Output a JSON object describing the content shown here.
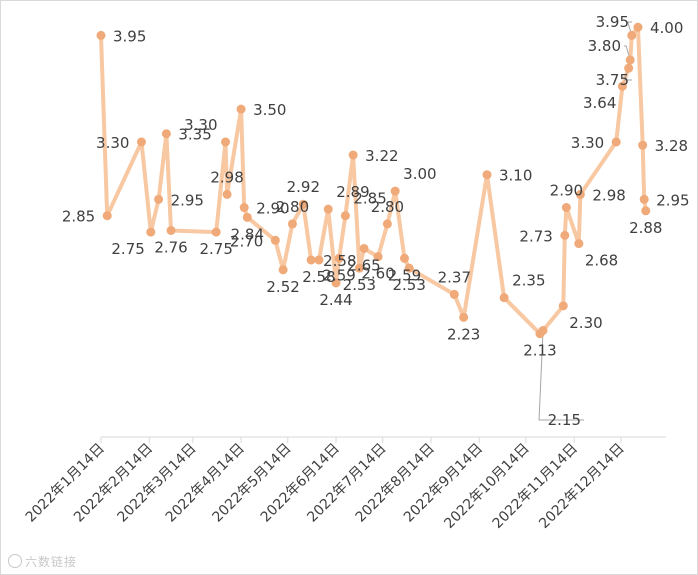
{
  "chart_data": {
    "type": "line",
    "title": "",
    "xlabel": "",
    "ylabel": "",
    "x_tick_labels": [
      "2022年1月14日",
      "2022年2月14日",
      "2022年3月14日",
      "2022年4月14日",
      "2022年5月14日",
      "2022年6月14日",
      "2022年7月14日",
      "2022年8月14日",
      "2022年9月14日",
      "2022年10月14日",
      "2022年11月14日",
      "2022年12月14日"
    ],
    "x_tick_dates": [
      "2022-01-14",
      "2022-02-14",
      "2022-03-14",
      "2022-04-14",
      "2022-05-14",
      "2022-06-14",
      "2022-07-14",
      "2022-08-14",
      "2022-09-14",
      "2022-10-14",
      "2022-11-14",
      "2022-12-14"
    ],
    "x_range": [
      "2022-01-14",
      "2023-01-12"
    ],
    "y_range": [
      1.5,
      4.05
    ],
    "grid": false,
    "legend": "none",
    "series": [
      {
        "color": "#f7c8a2",
        "marker_color": "#f0a978",
        "points": [
          {
            "x": "2022-01-14",
            "y": 3.95,
            "label": "3.95",
            "lp": "r"
          },
          {
            "x": "2022-01-18",
            "y": 2.85,
            "label": "2.85",
            "lp": "l"
          },
          {
            "x": "2022-02-09",
            "y": 3.3,
            "label": "3.30",
            "lp": "l"
          },
          {
            "x": "2022-02-15",
            "y": 2.75,
            "label": "2.75",
            "lp": "bl"
          },
          {
            "x": "2022-02-20",
            "y": 2.95,
            "label": "2.95",
            "lp": "r"
          },
          {
            "x": "2022-02-25",
            "y": 3.35,
            "label": "3.35",
            "lp": "r"
          },
          {
            "x": "2022-02-28",
            "y": 2.76,
            "label": "2.76",
            "lp": "b"
          },
          {
            "x": "2022-03-29",
            "y": 2.75,
            "label": "2.75",
            "lp": "b"
          },
          {
            "x": "2022-04-04",
            "y": 3.3,
            "label": "3.30",
            "lp": "tl"
          },
          {
            "x": "2022-04-05",
            "y": 2.98,
            "label": "2.98",
            "lp": "t"
          },
          {
            "x": "2022-04-14",
            "y": 3.5,
            "label": "3.50",
            "lp": "r"
          },
          {
            "x": "2022-04-16",
            "y": 2.9,
            "label": "2.90",
            "lp": "r"
          },
          {
            "x": "2022-04-18",
            "y": 2.84,
            "label": "2.84",
            "lp": "b"
          },
          {
            "x": "2022-05-06",
            "y": 2.7,
            "label": "2.70",
            "lp": "l"
          },
          {
            "x": "2022-05-11",
            "y": 2.52,
            "label": "2.52",
            "lp": "b"
          },
          {
            "x": "2022-05-17",
            "y": 2.8,
            "label": "2.80",
            "lp": "t"
          },
          {
            "x": "2022-05-24",
            "y": 2.92,
            "label": "2.92",
            "lp": "t"
          },
          {
            "x": "2022-05-29",
            "y": 2.58,
            "label": "2.58",
            "lp": "r"
          },
          {
            "x": "2022-06-03",
            "y": 2.58,
            "label": "2.58",
            "lp": "b"
          },
          {
            "x": "2022-06-09",
            "y": 2.89,
            "label": "2.89",
            "lp": "tr"
          },
          {
            "x": "2022-06-14",
            "y": 2.44,
            "label": "2.44",
            "lp": "b"
          },
          {
            "x": "2022-06-16",
            "y": 2.59,
            "label": "2.59",
            "lp": "b"
          },
          {
            "x": "2022-06-20",
            "y": 2.85,
            "label": "2.85",
            "lp": "tr"
          },
          {
            "x": "2022-06-25",
            "y": 3.22,
            "label": "3.22",
            "lp": "r"
          },
          {
            "x": "2022-06-29",
            "y": 2.53,
            "label": "2.53",
            "lp": "b"
          },
          {
            "x": "2022-07-02",
            "y": 2.65,
            "label": "2.65",
            "lp": "b"
          },
          {
            "x": "2022-07-11",
            "y": 2.6,
            "label": "2.60",
            "lp": "b"
          },
          {
            "x": "2022-07-17",
            "y": 2.8,
            "label": "2.80",
            "lp": "t"
          },
          {
            "x": "2022-07-22",
            "y": 3.0,
            "label": "3.00",
            "lp": "tr"
          },
          {
            "x": "2022-07-28",
            "y": 2.59,
            "label": "2.59",
            "lp": "b"
          },
          {
            "x": "2022-07-31",
            "y": 2.53,
            "label": "2.53",
            "lp": "b"
          },
          {
            "x": "2022-08-29",
            "y": 2.37,
            "label": "2.37",
            "lp": "t"
          },
          {
            "x": "2022-09-04",
            "y": 2.23,
            "label": "2.23",
            "lp": "b"
          },
          {
            "x": "2022-09-19",
            "y": 3.1,
            "label": "3.10",
            "lp": "r"
          },
          {
            "x": "2022-09-30",
            "y": 2.35,
            "label": "2.35",
            "lp": "tr"
          },
          {
            "x": "2022-10-23",
            "y": 2.13,
            "label": "2.13",
            "lp": "b"
          },
          {
            "x": "2022-10-25",
            "y": 2.15,
            "label": "2.15",
            "lp": "leader"
          },
          {
            "x": "2022-11-07",
            "y": 2.3,
            "label": "2.30",
            "lp": "br"
          },
          {
            "x": "2022-11-08",
            "y": 2.73,
            "label": "2.73",
            "lp": "l"
          },
          {
            "x": "2022-11-09",
            "y": 2.9,
            "label": "2.90",
            "lp": "t"
          },
          {
            "x": "2022-11-17",
            "y": 2.68,
            "label": "2.68",
            "lp": "br"
          },
          {
            "x": "2022-11-18",
            "y": 2.98,
            "label": "2.98",
            "lp": "r"
          },
          {
            "x": "2022-12-11",
            "y": 3.3,
            "label": "3.30",
            "lp": "l"
          },
          {
            "x": "2022-12-15",
            "y": 3.64,
            "label": "3.64",
            "lp": "bl"
          },
          {
            "x": "2022-12-19",
            "y": 3.75,
            "label": "3.75",
            "lp": "leader"
          },
          {
            "x": "2022-12-20",
            "y": 3.8,
            "label": "3.80",
            "lp": "leader"
          },
          {
            "x": "2022-12-21",
            "y": 3.95,
            "label": "3.95",
            "lp": "leader"
          },
          {
            "x": "2022-12-25",
            "y": 4.0,
            "label": "4.00",
            "lp": "r"
          },
          {
            "x": "2022-12-28",
            "y": 3.28,
            "label": "3.28",
            "lp": "r"
          },
          {
            "x": "2022-12-29",
            "y": 2.95,
            "label": "2.95",
            "lp": "r"
          },
          {
            "x": "2022-12-30",
            "y": 2.88,
            "label": "2.88",
            "lp": "b"
          }
        ]
      }
    ]
  },
  "watermark": {
    "text": "六数链接",
    "icon": "watermark-logo-icon"
  }
}
